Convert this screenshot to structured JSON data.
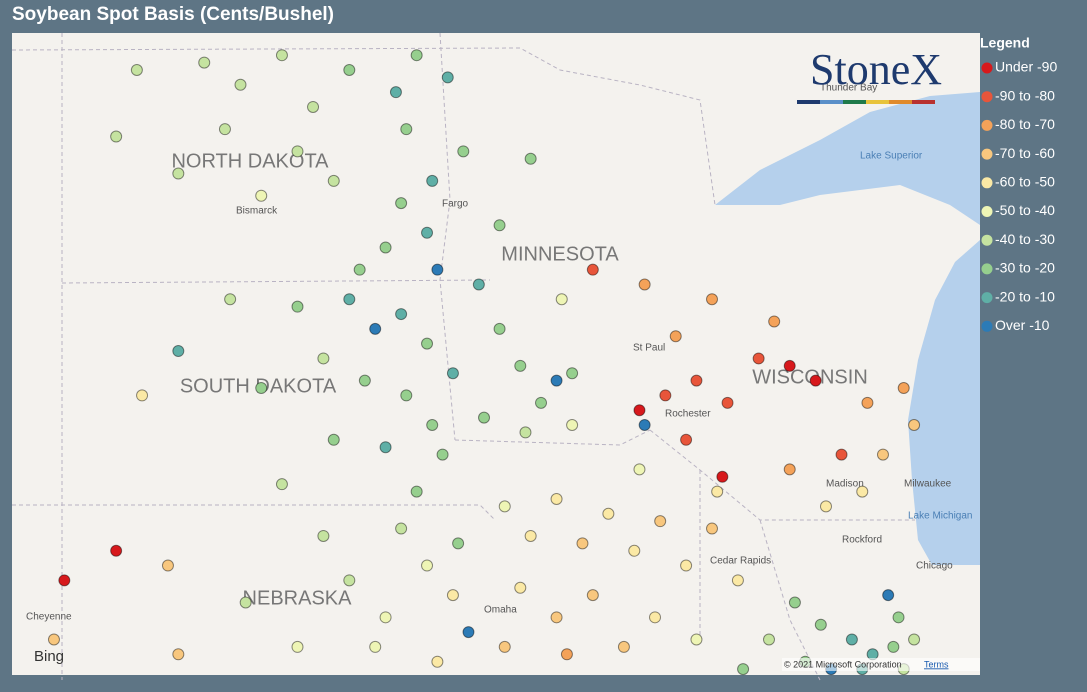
{
  "header": {
    "title": "Soybean Spot Basis (Cents/Bushel)"
  },
  "legend": {
    "title": "Legend",
    "items": [
      {
        "label": "Under -90",
        "color": "#d7191c"
      },
      {
        "label": "-90 to -80",
        "color": "#e8553a"
      },
      {
        "label": "-80 to -70",
        "color": "#f4a259"
      },
      {
        "label": "-70 to -60",
        "color": "#f8c77e"
      },
      {
        "label": "-60 to -50",
        "color": "#fbe9a5"
      },
      {
        "label": "-50 to -40",
        "color": "#eef5b5"
      },
      {
        "label": "-40 to -30",
        "color": "#c5e3a0"
      },
      {
        "label": "-30 to -20",
        "color": "#96cf8e"
      },
      {
        "label": "-20 to -10",
        "color": "#5fafa6"
      },
      {
        "label": "Over -10",
        "color": "#2c7bb6"
      }
    ]
  },
  "map": {
    "states": [
      "NORTH DAKOTA",
      "MINNESOTA",
      "SOUTH DAKOTA",
      "WISCONSIN",
      "NEBRASKA"
    ],
    "places": [
      "Bismarck",
      "Fargo",
      "St Paul",
      "Rochester",
      "Madison",
      "Milwaukee",
      "Rockford",
      "Cedar Rapids",
      "Omaha",
      "Chicago",
      "Cheyenne",
      "Thunder Bay",
      "Lake Superior",
      "Lake Michigan"
    ],
    "logo": "StoneX",
    "provider": "Bing",
    "copyright": "© 2021 Microsoft Corporation",
    "terms": "Terms",
    "points": [
      [
        -101.3,
        48.8,
        6
      ],
      [
        -100.6,
        48.5,
        6
      ],
      [
        -99.8,
        48.9,
        6
      ],
      [
        -100.9,
        47.9,
        6
      ],
      [
        -99.5,
        47.6,
        6
      ],
      [
        -101.8,
        47.3,
        6
      ],
      [
        -100.2,
        47.0,
        5
      ],
      [
        -99.2,
        48.2,
        6
      ],
      [
        -98.8,
        47.2,
        6
      ],
      [
        -102.6,
        48.7,
        6
      ],
      [
        -103.0,
        47.8,
        6
      ],
      [
        -98.5,
        48.7,
        7
      ],
      [
        -97.6,
        48.4,
        8
      ],
      [
        -97.2,
        48.9,
        7
      ],
      [
        -97.4,
        47.9,
        7
      ],
      [
        -96.9,
        47.2,
        8
      ],
      [
        -97.5,
        46.9,
        7
      ],
      [
        -97.0,
        46.5,
        8
      ],
      [
        -96.8,
        46.0,
        9
      ],
      [
        -97.8,
        46.3,
        7
      ],
      [
        -98.3,
        46.0,
        7
      ],
      [
        -96.6,
        48.6,
        8
      ],
      [
        -96.3,
        47.6,
        7
      ],
      [
        -99.5,
        45.5,
        7
      ],
      [
        -98.5,
        45.6,
        8
      ],
      [
        -98.0,
        45.2,
        9
      ],
      [
        -97.5,
        45.4,
        8
      ],
      [
        -97.0,
        45.0,
        7
      ],
      [
        -99.0,
        44.8,
        6
      ],
      [
        -98.2,
        44.5,
        7
      ],
      [
        -97.4,
        44.3,
        7
      ],
      [
        -96.9,
        43.9,
        7
      ],
      [
        -96.7,
        43.5,
        7
      ],
      [
        -97.8,
        43.6,
        8
      ],
      [
        -98.8,
        43.7,
        7
      ],
      [
        -100.2,
        44.4,
        7
      ],
      [
        -101.8,
        44.9,
        8
      ],
      [
        -102.5,
        44.3,
        4
      ],
      [
        -99.8,
        43.1,
        6
      ],
      [
        -97.2,
        43.0,
        7
      ],
      [
        -96.5,
        44.6,
        8
      ],
      [
        -100.8,
        45.6,
        6
      ],
      [
        -96.0,
        45.8,
        8
      ],
      [
        -95.6,
        45.2,
        7
      ],
      [
        -95.2,
        44.7,
        7
      ],
      [
        -94.8,
        44.2,
        7
      ],
      [
        -94.2,
        44.6,
        7
      ],
      [
        -95.6,
        46.6,
        7
      ],
      [
        -95.0,
        47.5,
        7
      ],
      [
        -94.4,
        45.6,
        5
      ],
      [
        -95.9,
        44.0,
        7
      ],
      [
        -95.1,
        43.8,
        6
      ],
      [
        -94.2,
        43.9,
        5
      ],
      [
        -92.8,
        43.9,
        9
      ],
      [
        -94.5,
        44.5,
        9
      ],
      [
        -92.4,
        44.3,
        1
      ],
      [
        -91.8,
        44.5,
        1
      ],
      [
        -92.9,
        44.1,
        0
      ],
      [
        -92.0,
        43.7,
        1
      ],
      [
        -91.2,
        44.2,
        1
      ],
      [
        -90.6,
        44.8,
        1
      ],
      [
        -90.0,
        44.7,
        0
      ],
      [
        -89.5,
        44.5,
        0
      ],
      [
        -90.3,
        45.3,
        2
      ],
      [
        -91.5,
        45.6,
        2
      ],
      [
        -92.2,
        45.1,
        2
      ],
      [
        -88.5,
        44.2,
        2
      ],
      [
        -87.8,
        44.4,
        2
      ],
      [
        -89.0,
        43.5,
        1
      ],
      [
        -90.0,
        43.3,
        2
      ],
      [
        -91.3,
        43.2,
        0
      ],
      [
        -92.8,
        45.8,
        2
      ],
      [
        -93.8,
        46.0,
        1
      ],
      [
        -88.2,
        43.5,
        3
      ],
      [
        -89.3,
        42.8,
        4
      ],
      [
        -88.6,
        43.0,
        4
      ],
      [
        -95.5,
        42.8,
        5
      ],
      [
        -95.0,
        42.4,
        4
      ],
      [
        -94.5,
        42.9,
        4
      ],
      [
        -94.0,
        42.3,
        3
      ],
      [
        -93.5,
        42.7,
        4
      ],
      [
        -93.0,
        42.2,
        4
      ],
      [
        -92.5,
        42.6,
        3
      ],
      [
        -92.0,
        42.0,
        4
      ],
      [
        -91.5,
        42.5,
        3
      ],
      [
        -91.0,
        41.8,
        4
      ],
      [
        -93.8,
        41.6,
        3
      ],
      [
        -94.5,
        41.3,
        3
      ],
      [
        -95.2,
        41.7,
        4
      ],
      [
        -92.6,
        41.3,
        4
      ],
      [
        -91.8,
        41.0,
        5
      ],
      [
        -93.2,
        40.9,
        3
      ],
      [
        -94.3,
        40.8,
        2
      ],
      [
        -95.5,
        40.9,
        3
      ],
      [
        -91.4,
        43.0,
        4
      ],
      [
        -92.9,
        43.3,
        5
      ],
      [
        -97.5,
        42.5,
        6
      ],
      [
        -97.0,
        42.0,
        5
      ],
      [
        -96.5,
        41.6,
        4
      ],
      [
        -97.8,
        41.3,
        5
      ],
      [
        -98.5,
        41.8,
        6
      ],
      [
        -98.0,
        40.9,
        5
      ],
      [
        -96.8,
        40.7,
        4
      ],
      [
        -99.5,
        40.9,
        5
      ],
      [
        -99.0,
        42.4,
        6
      ],
      [
        -100.5,
        41.5,
        6
      ],
      [
        -96.2,
        41.1,
        9
      ],
      [
        -96.4,
        42.3,
        7
      ],
      [
        -101.8,
        40.8,
        3
      ],
      [
        -103.0,
        42.2,
        0
      ],
      [
        -104.0,
        41.8,
        0
      ],
      [
        -102.0,
        42.0,
        3
      ],
      [
        -104.2,
        41.0,
        3
      ],
      [
        -89.9,
        41.5,
        7
      ],
      [
        -89.4,
        41.2,
        7
      ],
      [
        -88.8,
        41.0,
        8
      ],
      [
        -88.4,
        40.8,
        8
      ],
      [
        -88.0,
        40.9,
        7
      ],
      [
        -87.9,
        41.3,
        7
      ],
      [
        -88.1,
        41.6,
        9
      ],
      [
        -87.6,
        41.0,
        6
      ],
      [
        -89.7,
        40.7,
        7
      ],
      [
        -90.4,
        41.0,
        6
      ],
      [
        -90.9,
        40.6,
        7
      ],
      [
        -88.6,
        40.6,
        8
      ],
      [
        -89.2,
        40.6,
        9
      ],
      [
        -87.8,
        40.6,
        6
      ],
      [
        -87.6,
        43.9,
        3
      ]
    ]
  }
}
